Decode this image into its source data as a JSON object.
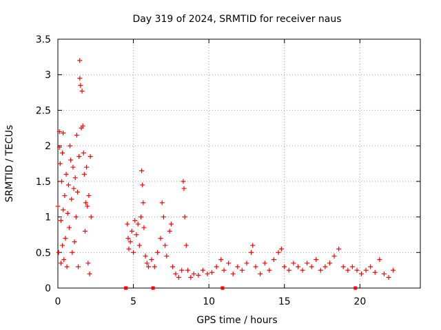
{
  "chart_data": {
    "type": "scatter",
    "title": "Day 319 of 2024, SRMTID for receiver naus",
    "xlabel": "GPS time / hours",
    "ylabel": "SRMTID / TECUs",
    "xlim": [
      0,
      24
    ],
    "ylim": [
      0,
      3.5
    ],
    "x_ticks": [
      0,
      5,
      10,
      15,
      20
    ],
    "x_tick_labels": [
      "0",
      "5",
      "10",
      "15",
      "20"
    ],
    "y_ticks": [
      0,
      0.5,
      1,
      1.5,
      2,
      2.5,
      3,
      3.5
    ],
    "y_tick_labels": [
      "0",
      "0.5",
      "1",
      "1.5",
      "2",
      "2.5",
      "3",
      "3.5"
    ],
    "grid": true,
    "marker": "plus",
    "color": "#ff0000",
    "series": [
      {
        "name": "SRMTID",
        "points": [
          [
            0.0,
            1.15
          ],
          [
            0.05,
            0.5
          ],
          [
            0.1,
            2.2
          ],
          [
            0.1,
            1.98
          ],
          [
            0.15,
            1.75
          ],
          [
            0.2,
            0.95
          ],
          [
            0.2,
            0.35
          ],
          [
            0.25,
            1.5
          ],
          [
            0.3,
            0.6
          ],
          [
            0.3,
            1.9
          ],
          [
            0.35,
            2.18
          ],
          [
            0.35,
            1.1
          ],
          [
            0.4,
            0.4
          ],
          [
            0.45,
            1.3
          ],
          [
            0.5,
            0.7
          ],
          [
            0.55,
            1.6
          ],
          [
            0.6,
            0.3
          ],
          [
            0.65,
            1.05
          ],
          [
            0.7,
            1.45
          ],
          [
            0.75,
            0.85
          ],
          [
            0.8,
            2.0
          ],
          [
            0.85,
            1.8
          ],
          [
            0.9,
            1.25
          ],
          [
            0.95,
            0.5
          ],
          [
            1.0,
            1.7
          ],
          [
            1.05,
            1.4
          ],
          [
            1.1,
            0.65
          ],
          [
            1.15,
            1.55
          ],
          [
            1.2,
            1.0
          ],
          [
            1.25,
            2.15
          ],
          [
            1.3,
            1.35
          ],
          [
            1.35,
            0.3
          ],
          [
            1.4,
            1.85
          ],
          [
            1.45,
            3.2
          ],
          [
            1.45,
            2.95
          ],
          [
            1.5,
            2.85
          ],
          [
            1.55,
            2.25
          ],
          [
            1.6,
            2.77
          ],
          [
            1.65,
            2.28
          ],
          [
            1.7,
            1.9
          ],
          [
            1.75,
            1.6
          ],
          [
            1.8,
            0.8
          ],
          [
            1.85,
            1.2
          ],
          [
            1.9,
            1.7
          ],
          [
            1.95,
            1.15
          ],
          [
            2.0,
            0.35
          ],
          [
            2.05,
            1.3
          ],
          [
            2.1,
            0.2
          ],
          [
            2.15,
            1.85
          ],
          [
            2.2,
            1.0
          ],
          [
            4.6,
            0.9
          ],
          [
            4.65,
            0.7
          ],
          [
            4.7,
            0.55
          ],
          [
            4.8,
            0.65
          ],
          [
            4.9,
            0.8
          ],
          [
            5.0,
            0.5
          ],
          [
            5.1,
            0.95
          ],
          [
            5.2,
            0.75
          ],
          [
            5.3,
            0.9
          ],
          [
            5.4,
            0.6
          ],
          [
            5.5,
            1.0
          ],
          [
            5.55,
            1.65
          ],
          [
            5.6,
            1.45
          ],
          [
            5.65,
            1.2
          ],
          [
            5.7,
            0.85
          ],
          [
            5.8,
            0.45
          ],
          [
            5.9,
            0.35
          ],
          [
            6.0,
            0.3
          ],
          [
            6.2,
            0.4
          ],
          [
            6.4,
            0.3
          ],
          [
            6.6,
            0.5
          ],
          [
            6.8,
            0.7
          ],
          [
            6.9,
            1.2
          ],
          [
            7.0,
            1.0
          ],
          [
            7.1,
            0.6
          ],
          [
            7.2,
            0.45
          ],
          [
            7.4,
            0.8
          ],
          [
            7.5,
            0.9
          ],
          [
            7.6,
            0.3
          ],
          [
            7.8,
            0.2
          ],
          [
            8.0,
            0.15
          ],
          [
            8.2,
            0.25
          ],
          [
            8.3,
            1.5
          ],
          [
            8.35,
            1.4
          ],
          [
            8.4,
            1.0
          ],
          [
            8.5,
            0.6
          ],
          [
            8.6,
            0.25
          ],
          [
            8.8,
            0.15
          ],
          [
            9.0,
            0.2
          ],
          [
            9.3,
            0.18
          ],
          [
            9.6,
            0.25
          ],
          [
            9.9,
            0.2
          ],
          [
            10.2,
            0.22
          ],
          [
            10.5,
            0.3
          ],
          [
            10.8,
            0.4
          ],
          [
            11.0,
            0.25
          ],
          [
            11.3,
            0.35
          ],
          [
            11.6,
            0.2
          ],
          [
            11.9,
            0.3
          ],
          [
            12.2,
            0.25
          ],
          [
            12.5,
            0.35
          ],
          [
            12.8,
            0.5
          ],
          [
            12.9,
            0.6
          ],
          [
            13.1,
            0.3
          ],
          [
            13.4,
            0.2
          ],
          [
            13.7,
            0.35
          ],
          [
            14.0,
            0.25
          ],
          [
            14.3,
            0.4
          ],
          [
            14.6,
            0.5
          ],
          [
            14.8,
            0.55
          ],
          [
            15.0,
            0.3
          ],
          [
            15.3,
            0.25
          ],
          [
            15.6,
            0.35
          ],
          [
            15.9,
            0.3
          ],
          [
            16.2,
            0.25
          ],
          [
            16.5,
            0.35
          ],
          [
            16.8,
            0.3
          ],
          [
            17.1,
            0.4
          ],
          [
            17.4,
            0.25
          ],
          [
            17.7,
            0.3
          ],
          [
            18.0,
            0.35
          ],
          [
            18.3,
            0.45
          ],
          [
            18.6,
            0.55
          ],
          [
            18.9,
            0.3
          ],
          [
            19.2,
            0.25
          ],
          [
            19.5,
            0.3
          ],
          [
            19.8,
            0.25
          ],
          [
            20.1,
            0.2
          ],
          [
            20.4,
            0.25
          ],
          [
            20.7,
            0.3
          ],
          [
            21.0,
            0.22
          ],
          [
            21.3,
            0.4
          ],
          [
            21.6,
            0.2
          ],
          [
            21.9,
            0.15
          ],
          [
            22.2,
            0.25
          ]
        ],
        "gap_markers_x": [
          4.5,
          6.3,
          10.9,
          19.7
        ]
      }
    ]
  }
}
